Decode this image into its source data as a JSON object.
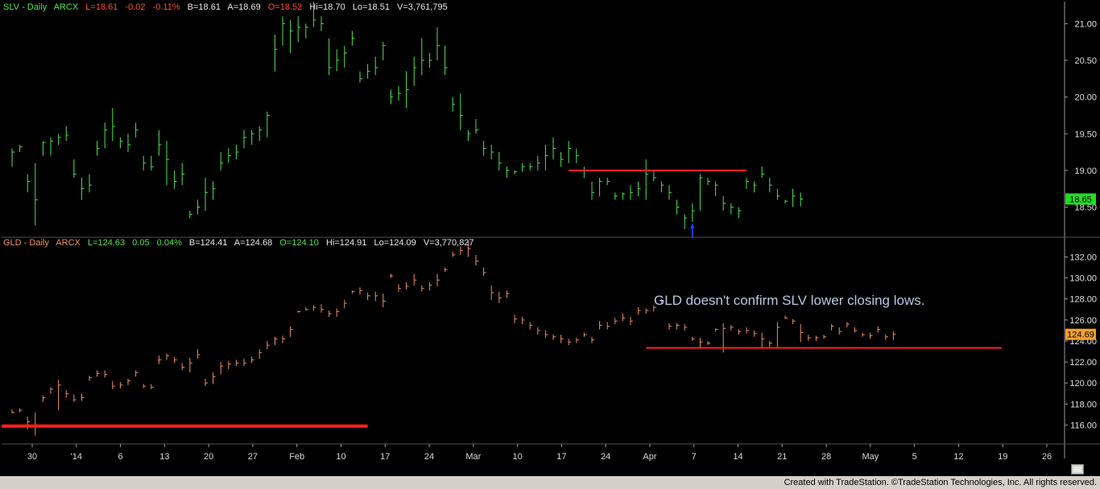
{
  "chart_data": [
    {
      "type": "ohlc",
      "symbol_label": "SLV - Daily",
      "exchange": "ARCX",
      "stats": {
        "last": "L=18.61",
        "change": "-0.02",
        "change_pct": "-0.11%",
        "bid": "B=18.61",
        "ask": "A=18.69",
        "open": "O=18.52",
        "high": "Hi=18.70",
        "low": "Lo=18.51",
        "volume": "V=3,761,795"
      },
      "last_value_tag": "18.65",
      "y_ticks": [
        "18.50",
        "19.00",
        "19.50",
        "20.00",
        "20.50",
        "21.00"
      ],
      "ylim": [
        18.1,
        21.3
      ],
      "bars_x_index_start": 0,
      "bars": [
        [
          19.3,
          19.05,
          19.25
        ],
        [
          19.35,
          19.25,
          19.32
        ],
        [
          18.95,
          18.7,
          18.85
        ],
        [
          19.1,
          18.25,
          18.6
        ],
        [
          19.4,
          19.2,
          19.38
        ],
        [
          19.45,
          19.2,
          19.4
        ],
        [
          19.5,
          19.35,
          19.45
        ],
        [
          19.6,
          19.4,
          19.48
        ],
        [
          19.15,
          18.9,
          18.95
        ],
        [
          18.9,
          18.6,
          18.75
        ],
        [
          18.95,
          18.7,
          18.8
        ],
        [
          19.4,
          19.2,
          19.3
        ],
        [
          19.65,
          19.3,
          19.55
        ],
        [
          19.85,
          19.4,
          19.6
        ],
        [
          19.45,
          19.3,
          19.4
        ],
        [
          19.5,
          19.25,
          19.35
        ],
        [
          19.65,
          19.45,
          19.55
        ],
        [
          19.2,
          19.0,
          19.1
        ],
        [
          19.2,
          19.0,
          19.05
        ],
        [
          19.55,
          19.2,
          19.35
        ],
        [
          19.4,
          18.8,
          19.15
        ],
        [
          19.0,
          18.75,
          18.85
        ],
        [
          19.1,
          18.8,
          18.95
        ],
        [
          18.45,
          18.35,
          18.4
        ],
        [
          18.6,
          18.4,
          18.5
        ],
        [
          18.9,
          18.45,
          18.7
        ],
        [
          18.85,
          18.6,
          18.75
        ],
        [
          19.25,
          19.0,
          19.1
        ],
        [
          19.3,
          19.1,
          19.2
        ],
        [
          19.35,
          19.15,
          19.25
        ],
        [
          19.55,
          19.3,
          19.45
        ],
        [
          19.55,
          19.35,
          19.5
        ],
        [
          19.6,
          19.4,
          19.55
        ],
        [
          19.8,
          19.45,
          19.75
        ],
        [
          20.85,
          20.35,
          20.65
        ],
        [
          21.1,
          20.7,
          21.0
        ],
        [
          21.05,
          20.6,
          20.9
        ],
        [
          21.1,
          20.75,
          20.95
        ],
        [
          21.0,
          20.8,
          20.95
        ],
        [
          21.3,
          20.95,
          21.05
        ],
        [
          21.1,
          20.9,
          21.0
        ],
        [
          20.8,
          20.3,
          20.4
        ],
        [
          20.65,
          20.35,
          20.5
        ],
        [
          20.7,
          20.4,
          20.6
        ],
        [
          20.9,
          20.7,
          20.8
        ],
        [
          20.35,
          20.2,
          20.25
        ],
        [
          20.45,
          20.25,
          20.35
        ],
        [
          20.55,
          20.3,
          20.4
        ],
        [
          20.75,
          20.5,
          20.7
        ],
        [
          20.1,
          19.9,
          20.0
        ],
        [
          20.15,
          19.95,
          20.05
        ],
        [
          20.35,
          19.85,
          20.1
        ],
        [
          20.55,
          20.15,
          20.4
        ],
        [
          20.8,
          20.3,
          20.5
        ],
        [
          20.6,
          20.4,
          20.5
        ],
        [
          20.95,
          20.5,
          20.7
        ],
        [
          20.7,
          20.3,
          20.4
        ],
        [
          20.0,
          19.8,
          19.9
        ],
        [
          20.05,
          19.55,
          19.75
        ],
        [
          19.55,
          19.4,
          19.5
        ],
        [
          19.7,
          19.5,
          19.55
        ],
        [
          19.4,
          19.2,
          19.3
        ],
        [
          19.35,
          19.15,
          19.25
        ],
        [
          19.25,
          19.0,
          19.1
        ],
        [
          19.05,
          18.9,
          19.0
        ],
        [
          19.0,
          18.95,
          18.98
        ],
        [
          19.1,
          18.98,
          19.05
        ],
        [
          19.1,
          19.0,
          19.05
        ],
        [
          19.2,
          19.0,
          19.1
        ],
        [
          19.35,
          19.0,
          19.2
        ],
        [
          19.45,
          19.15,
          19.3
        ],
        [
          19.25,
          19.05,
          19.15
        ],
        [
          19.4,
          19.1,
          19.3
        ],
        [
          19.3,
          19.1,
          19.2
        ],
        [
          19.05,
          18.9,
          19.0
        ],
        [
          18.85,
          18.6,
          18.7
        ],
        [
          18.9,
          18.65,
          18.85
        ],
        [
          18.9,
          18.8,
          18.85
        ],
        [
          18.7,
          18.6,
          18.65
        ],
        [
          18.7,
          18.6,
          18.68
        ],
        [
          18.8,
          18.6,
          18.7
        ],
        [
          18.85,
          18.65,
          18.75
        ],
        [
          19.15,
          18.6,
          18.95
        ],
        [
          19.0,
          18.85,
          18.9
        ],
        [
          18.85,
          18.7,
          18.8
        ],
        [
          18.8,
          18.6,
          18.7
        ],
        [
          18.6,
          18.4,
          18.5
        ],
        [
          18.4,
          18.2,
          18.35
        ],
        [
          18.55,
          18.3,
          18.45
        ],
        [
          18.95,
          18.45,
          18.9
        ],
        [
          18.9,
          18.8,
          18.85
        ],
        [
          18.85,
          18.65,
          18.8
        ],
        [
          18.65,
          18.45,
          18.55
        ],
        [
          18.55,
          18.4,
          18.5
        ],
        [
          18.5,
          18.35,
          18.45
        ],
        [
          18.9,
          18.75,
          18.85
        ],
        [
          18.85,
          18.7,
          18.8
        ],
        [
          19.05,
          18.9,
          18.95
        ],
        [
          18.9,
          18.7,
          18.8
        ],
        [
          18.75,
          18.6,
          18.65
        ],
        [
          18.6,
          18.55,
          18.58
        ],
        [
          18.75,
          18.5,
          18.65
        ],
        [
          18.7,
          18.51,
          18.61
        ]
      ],
      "annotation_line": {
        "from_index": 72,
        "to_index": 95,
        "value": 19.0
      },
      "arrow_index": 88
    },
    {
      "type": "ohlc",
      "symbol_label": "GLD - Daily",
      "exchange": "ARCX",
      "stats": {
        "last": "L=124.63",
        "change": "0.05",
        "change_pct": "0.04%",
        "bid": "B=124.41",
        "ask": "A=124.68",
        "open": "O=124.10",
        "high": "Hi=124.91",
        "low": "Lo=124.09",
        "volume": "V=3,770,827"
      },
      "last_value_tag": "124.69",
      "y_ticks": [
        "116.00",
        "118.00",
        "120.00",
        "122.00",
        "124.00",
        "126.00",
        "128.00",
        "130.00",
        "132.00"
      ],
      "ylim": [
        114.5,
        133.8
      ],
      "bars": [
        [
          117.5,
          117.1,
          117.2
        ],
        [
          117.6,
          117.2,
          117.4
        ],
        [
          116.8,
          115.6,
          116.3
        ],
        [
          117.2,
          115.0,
          116.0
        ],
        [
          118.8,
          118.2,
          118.6
        ],
        [
          119.6,
          119.0,
          119.4
        ],
        [
          120.3,
          117.4,
          119.8
        ],
        [
          119.3,
          118.6,
          119.0
        ],
        [
          118.9,
          118.2,
          118.4
        ],
        [
          119.0,
          118.3,
          118.6
        ],
        [
          120.7,
          120.2,
          120.5
        ],
        [
          121.2,
          120.6,
          120.9
        ],
        [
          121.2,
          120.5,
          120.8
        ],
        [
          120.2,
          119.4,
          119.7
        ],
        [
          120.1,
          119.5,
          119.8
        ],
        [
          120.4,
          119.8,
          120.2
        ],
        [
          121.2,
          120.6,
          121.0
        ],
        [
          119.9,
          119.5,
          119.7
        ],
        [
          119.9,
          119.4,
          119.6
        ],
        [
          122.6,
          121.8,
          122.2
        ],
        [
          122.8,
          122.2,
          122.6
        ],
        [
          122.5,
          121.9,
          122.2
        ],
        [
          121.9,
          121.2,
          121.5
        ],
        [
          122.4,
          121.0,
          121.9
        ],
        [
          123.2,
          122.3,
          122.7
        ],
        [
          120.4,
          119.7,
          120.0
        ],
        [
          121.0,
          119.9,
          120.6
        ],
        [
          122.0,
          120.8,
          121.6
        ],
        [
          122.1,
          121.3,
          121.8
        ],
        [
          122.2,
          121.6,
          121.9
        ],
        [
          122.3,
          121.6,
          121.9
        ],
        [
          122.5,
          121.9,
          122.2
        ],
        [
          123.2,
          122.3,
          122.9
        ],
        [
          124.0,
          123.2,
          123.6
        ],
        [
          124.4,
          123.6,
          124.2
        ],
        [
          124.5,
          123.8,
          124.2
        ],
        [
          125.4,
          124.4,
          125.1
        ],
        [
          126.9,
          126.7,
          126.8
        ],
        [
          127.2,
          126.9,
          127.0
        ],
        [
          127.4,
          126.9,
          127.2
        ],
        [
          127.5,
          126.7,
          127.0
        ],
        [
          126.9,
          126.3,
          126.6
        ],
        [
          127.1,
          126.3,
          126.8
        ],
        [
          127.9,
          127.1,
          127.6
        ],
        [
          128.8,
          128.5,
          128.7
        ],
        [
          129.1,
          128.4,
          128.8
        ],
        [
          128.6,
          127.9,
          128.3
        ],
        [
          128.7,
          127.8,
          128.3
        ],
        [
          128.5,
          127.2,
          127.8
        ],
        [
          130.4,
          130.0,
          130.2
        ],
        [
          129.4,
          128.7,
          129.0
        ],
        [
          129.6,
          128.9,
          129.2
        ],
        [
          130.4,
          129.3,
          129.8
        ],
        [
          129.3,
          128.7,
          129.0
        ],
        [
          129.6,
          128.8,
          129.3
        ],
        [
          130.4,
          129.2,
          129.8
        ],
        [
          131.0,
          130.6,
          130.8
        ],
        [
          132.5,
          132.0,
          132.2
        ],
        [
          133.0,
          132.2,
          132.6
        ],
        [
          133.5,
          132.0,
          132.8
        ],
        [
          132.2,
          131.2,
          131.6
        ],
        [
          131.0,
          130.2,
          130.5
        ],
        [
          129.3,
          127.9,
          128.6
        ],
        [
          128.7,
          127.6,
          128.1
        ],
        [
          128.8,
          128.1,
          128.5
        ],
        [
          126.5,
          125.7,
          126.1
        ],
        [
          126.3,
          125.6,
          126.0
        ],
        [
          125.8,
          125.1,
          125.5
        ],
        [
          125.3,
          124.6,
          125.0
        ],
        [
          125.0,
          124.3,
          124.6
        ],
        [
          124.6,
          124.1,
          124.4
        ],
        [
          124.6,
          123.8,
          124.2
        ],
        [
          124.2,
          123.6,
          123.9
        ],
        [
          124.3,
          123.8,
          124.1
        ],
        [
          124.8,
          124.4,
          124.6
        ],
        [
          124.4,
          123.8,
          124.1
        ],
        [
          125.9,
          125.1,
          125.5
        ],
        [
          125.8,
          125.1,
          125.4
        ],
        [
          126.2,
          125.6,
          125.9
        ],
        [
          126.6,
          125.9,
          126.2
        ],
        [
          126.3,
          125.5,
          125.9
        ],
        [
          127.2,
          126.5,
          126.9
        ],
        [
          127.1,
          126.6,
          126.9
        ],
        [
          127.4,
          126.8,
          127.2
        ],
        [
          128.0,
          127.5,
          127.8
        ],
        [
          125.7,
          125.1,
          125.4
        ],
        [
          125.7,
          125.1,
          125.5
        ],
        [
          125.6,
          125.0,
          125.3
        ],
        [
          124.4,
          124.0,
          124.2
        ],
        [
          124.3,
          123.4,
          123.9
        ],
        [
          124.0,
          123.6,
          123.8
        ],
        [
          125.2,
          124.9,
          125.1
        ],
        [
          125.7,
          122.9,
          125.2
        ],
        [
          125.5,
          125.0,
          125.3
        ],
        [
          125.1,
          124.6,
          124.9
        ],
        [
          125.3,
          124.7,
          125.0
        ],
        [
          125.0,
          124.4,
          124.7
        ],
        [
          124.8,
          123.3,
          124.2
        ],
        [
          124.0,
          123.4,
          123.8
        ],
        [
          125.8,
          123.4,
          125.3
        ],
        [
          126.4,
          126.1,
          126.2
        ],
        [
          126.1,
          125.6,
          125.9
        ],
        [
          125.6,
          123.9,
          124.8
        ],
        [
          124.6,
          124.0,
          124.3
        ],
        [
          124.5,
          124.0,
          124.3
        ],
        [
          124.6,
          124.2,
          124.4
        ],
        [
          125.6,
          125.0,
          125.4
        ],
        [
          125.3,
          124.6,
          124.9
        ],
        [
          125.8,
          125.3,
          125.6
        ],
        [
          125.3,
          124.8,
          125.0
        ],
        [
          124.8,
          124.4,
          124.6
        ],
        [
          124.8,
          124.2,
          124.5
        ],
        [
          125.4,
          124.8,
          125.1
        ],
        [
          124.6,
          124.1,
          124.4
        ],
        [
          124.91,
          124.09,
          124.63
        ]
      ],
      "annotation_lines": [
        {
          "from_index": -1,
          "to_index": 46,
          "value": 115.9
        },
        {
          "from_index": 82,
          "to_index": 128,
          "value": 123.35
        }
      ]
    }
  ],
  "x_axis_labels": [
    "30",
    "'14",
    "6",
    "13",
    "20",
    "27",
    "Feb",
    "10",
    "17",
    "24",
    "Mar",
    "10",
    "17",
    "24",
    "Apr",
    "7",
    "14",
    "21",
    "28",
    "May",
    "5",
    "12",
    "19",
    "26"
  ],
  "note": "GLD doesn't confirm SLV lower closing lows.",
  "footer": "Created with TradeStation. ©TradeStation Technologies, Inc. All rights reserved.",
  "colors": {
    "slv": "#4ee44e",
    "gld": "#f09060",
    "hline": "#ff2020",
    "arrow": "#1a3cff",
    "axis": "#9a9a9a",
    "last_tag_slv": "#22dd22",
    "last_tag_gld": "#f5a02a"
  }
}
